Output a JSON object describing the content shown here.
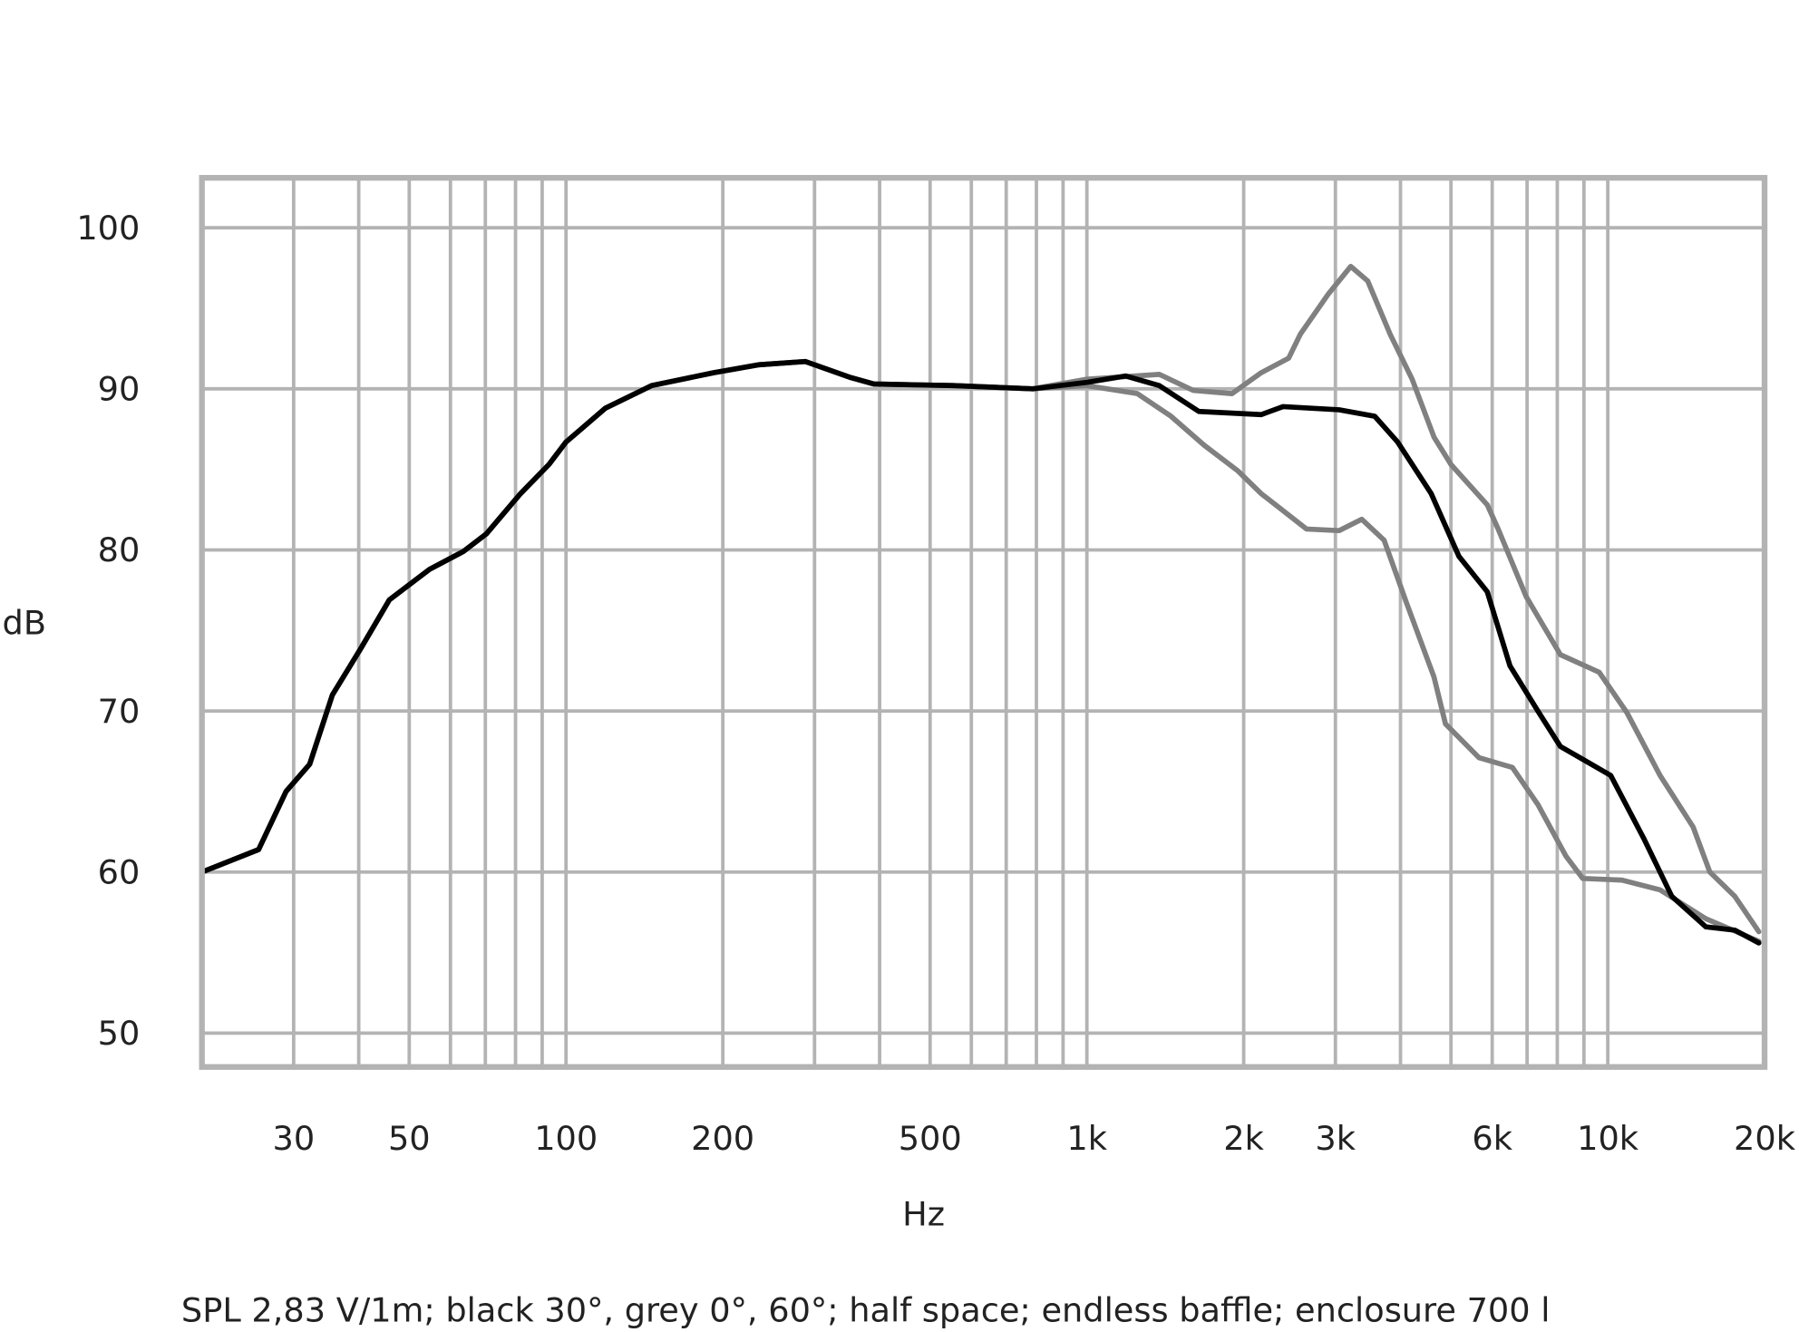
{
  "chart_data": {
    "type": "line",
    "title": "",
    "xlabel": "Hz",
    "ylabel": "dB",
    "caption": "SPL 2,83 V/1m; black 30°, grey 0°, 60°; half space; endless baffle; enclosure 700 l",
    "x_scale": "log",
    "xlim": [
      20,
      20000
    ],
    "ylim": [
      47.9,
      103.1
    ],
    "grid": true,
    "x_ticks": [
      {
        "value": 30,
        "label": "30"
      },
      {
        "value": 50,
        "label": "50"
      },
      {
        "value": 100,
        "label": "100"
      },
      {
        "value": 200,
        "label": "200"
      },
      {
        "value": 500,
        "label": "500"
      },
      {
        "value": 1000,
        "label": "1k"
      },
      {
        "value": 2000,
        "label": "2k"
      },
      {
        "value": 3000,
        "label": "3k"
      },
      {
        "value": 6000,
        "label": "6k"
      },
      {
        "value": 10000,
        "label": "10k"
      },
      {
        "value": 20000,
        "label": "20k"
      }
    ],
    "y_ticks": [
      {
        "value": 50,
        "label": "50"
      },
      {
        "value": 60,
        "label": "60"
      },
      {
        "value": 70,
        "label": "70"
      },
      {
        "value": 80,
        "label": "80"
      },
      {
        "value": 90,
        "label": "90"
      },
      {
        "value": 100,
        "label": "100"
      }
    ],
    "colors": {
      "grid": "#b3b3b3",
      "black": "#000000",
      "grey": "#808080"
    },
    "series": [
      {
        "color": "#808080",
        "points": [
          [
            20,
            60.0
          ],
          [
            25.7,
            61.4
          ],
          [
            29,
            65
          ],
          [
            32.2,
            66.7
          ],
          [
            35.6,
            71
          ],
          [
            40.4,
            73.9
          ],
          [
            45.8,
            76.9
          ],
          [
            54.7,
            78.8
          ],
          [
            63.5,
            79.9
          ],
          [
            70.3,
            81
          ],
          [
            81.8,
            83.5
          ],
          [
            92.7,
            85.3
          ],
          [
            100,
            86.7
          ],
          [
            119,
            88.8
          ],
          [
            146,
            90.2
          ],
          [
            192,
            91
          ],
          [
            235,
            91.5
          ],
          [
            288,
            91.7
          ],
          [
            352,
            90.7
          ],
          [
            390,
            90.3
          ],
          [
            554,
            90.2
          ],
          [
            787,
            90.0
          ],
          [
            1000,
            90.6
          ],
          [
            1377,
            90.9
          ],
          [
            1600,
            89.9
          ],
          [
            1900,
            89.7
          ],
          [
            2160,
            91
          ],
          [
            2440,
            91.9
          ],
          [
            2570,
            93.4
          ],
          [
            2910,
            95.9
          ],
          [
            3210,
            97.6
          ],
          [
            3460,
            96.7
          ],
          [
            3820,
            93.4
          ],
          [
            4210,
            90.6
          ],
          [
            4640,
            87
          ],
          [
            5000,
            85.3
          ],
          [
            5870,
            82.8
          ],
          [
            6160,
            81.3
          ],
          [
            6970,
            77.1
          ],
          [
            8110,
            73.5
          ],
          [
            9630,
            72.4
          ],
          [
            10880,
            69.9
          ],
          [
            12600,
            66
          ],
          [
            14580,
            62.8
          ],
          [
            15700,
            60
          ],
          [
            17530,
            58.5
          ],
          [
            19500,
            56.3
          ]
        ]
      },
      {
        "color": "#808080",
        "points": [
          [
            20,
            60.0
          ],
          [
            25.7,
            61.4
          ],
          [
            29,
            65
          ],
          [
            32.2,
            66.7
          ],
          [
            35.6,
            71
          ],
          [
            40.4,
            73.9
          ],
          [
            45.8,
            76.9
          ],
          [
            54.7,
            78.8
          ],
          [
            63.5,
            79.9
          ],
          [
            70.3,
            81
          ],
          [
            81.8,
            83.5
          ],
          [
            92.7,
            85.3
          ],
          [
            100,
            86.7
          ],
          [
            119,
            88.8
          ],
          [
            146,
            90.2
          ],
          [
            192,
            91
          ],
          [
            235,
            91.5
          ],
          [
            288,
            91.7
          ],
          [
            352,
            90.7
          ],
          [
            390,
            90.3
          ],
          [
            554,
            90.2
          ],
          [
            787,
            90.0
          ],
          [
            1000,
            90.2
          ],
          [
            1250,
            89.7
          ],
          [
            1450,
            88.3
          ],
          [
            1680,
            86.5
          ],
          [
            1950,
            84.9
          ],
          [
            2160,
            83.5
          ],
          [
            2640,
            81.3
          ],
          [
            3050,
            81.2
          ],
          [
            3370,
            81.9
          ],
          [
            3720,
            80.6
          ],
          [
            4110,
            76.7
          ],
          [
            4640,
            72.1
          ],
          [
            4880,
            69.2
          ],
          [
            5660,
            67.1
          ],
          [
            6560,
            66.5
          ],
          [
            7340,
            64.2
          ],
          [
            8310,
            61
          ],
          [
            8950,
            59.6
          ],
          [
            10650,
            59.5
          ],
          [
            12600,
            58.9
          ],
          [
            15430,
            57.1
          ],
          [
            19500,
            55.7
          ]
        ]
      },
      {
        "color": "#000000",
        "points": [
          [
            20,
            60.0
          ],
          [
            25.7,
            61.4
          ],
          [
            29,
            65
          ],
          [
            32.2,
            66.7
          ],
          [
            35.6,
            71
          ],
          [
            40.4,
            73.9
          ],
          [
            45.8,
            76.9
          ],
          [
            54.7,
            78.8
          ],
          [
            63.5,
            79.9
          ],
          [
            70.3,
            81
          ],
          [
            81.8,
            83.5
          ],
          [
            92.7,
            85.3
          ],
          [
            100,
            86.7
          ],
          [
            119,
            88.8
          ],
          [
            146,
            90.2
          ],
          [
            192,
            91
          ],
          [
            235,
            91.5
          ],
          [
            288,
            91.7
          ],
          [
            352,
            90.7
          ],
          [
            390,
            90.3
          ],
          [
            554,
            90.2
          ],
          [
            787,
            90.0
          ],
          [
            1000,
            90.4
          ],
          [
            1186,
            90.8
          ],
          [
            1377,
            90.2
          ],
          [
            1640,
            88.6
          ],
          [
            2160,
            88.4
          ],
          [
            2380,
            88.9
          ],
          [
            3050,
            88.7
          ],
          [
            3570,
            88.3
          ],
          [
            3950,
            86.7
          ],
          [
            4580,
            83.5
          ],
          [
            5180,
            79.6
          ],
          [
            5870,
            77.4
          ],
          [
            6490,
            72.8
          ],
          [
            7340,
            70
          ],
          [
            8110,
            67.8
          ],
          [
            8950,
            67
          ],
          [
            10130,
            66
          ],
          [
            11720,
            62.1
          ],
          [
            13270,
            58.5
          ],
          [
            15430,
            56.6
          ],
          [
            17530,
            56.4
          ],
          [
            19500,
            55.6
          ]
        ]
      }
    ]
  }
}
